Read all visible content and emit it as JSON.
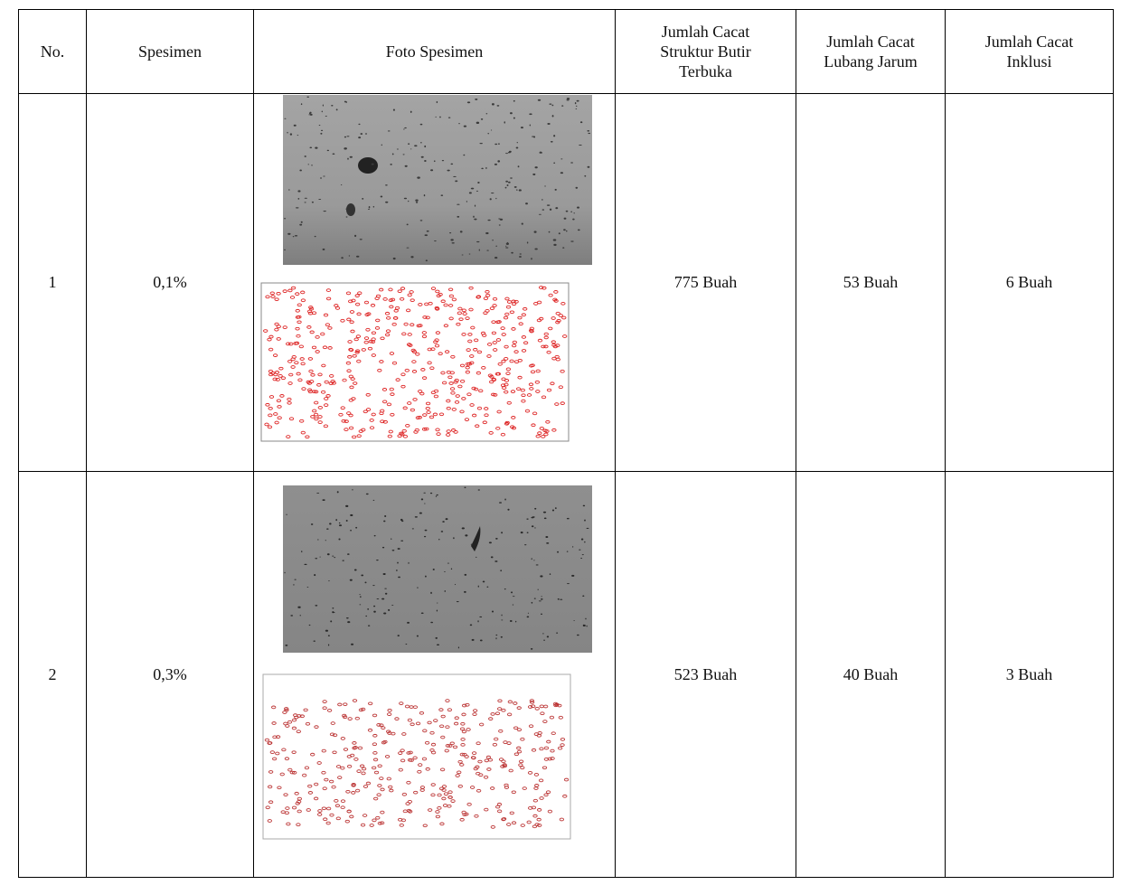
{
  "table": {
    "headers": {
      "no": "No.",
      "spesimen": "Spesimen",
      "foto": "Foto Spesimen",
      "struktur": [
        "Jumlah Cacat",
        "Struktur Butir",
        "Terbuka"
      ],
      "lubang": [
        "Jumlah Cacat",
        "Lubang Jarum"
      ],
      "inklusi": [
        "Jumlah Cacat",
        "Inklusi"
      ]
    },
    "rows": [
      {
        "no": "1",
        "spesimen": "0,1%",
        "struktur": "775 Buah",
        "lubang": "53 Buah",
        "inklusi": "6 Buah"
      },
      {
        "no": "2",
        "spesimen": "0,3%",
        "struktur": "523 Buah",
        "lubang": "40 Buah",
        "inklusi": "3 Buah"
      }
    ]
  }
}
